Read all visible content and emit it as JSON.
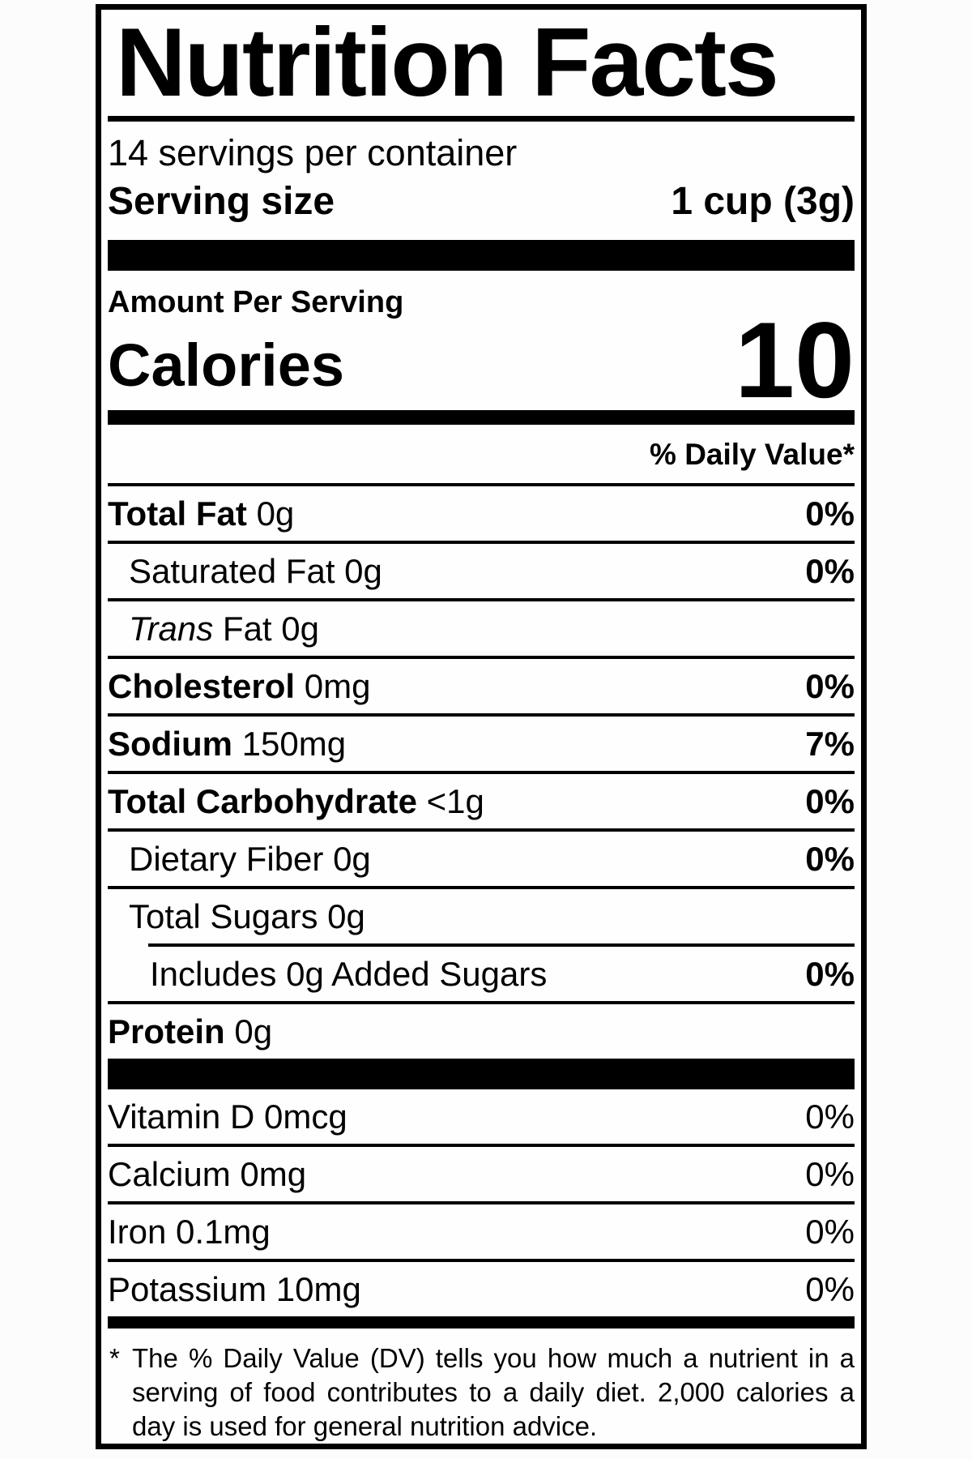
{
  "label": {
    "title": "Nutrition Facts",
    "servings_per_container": "14 servings per container",
    "serving_size": {
      "label": "Serving size",
      "value": "1 cup (3g)"
    },
    "amount_per_serving": "Amount Per Serving",
    "calories": {
      "label": "Calories",
      "value": "10"
    },
    "daily_value_header": "% Daily Value*",
    "rows": [
      {
        "name": "Total Fat",
        "amount": "0g",
        "pct": "0%"
      },
      {
        "name": "Saturated Fat",
        "amount": "0g",
        "pct": "0%"
      },
      {
        "name": "Trans",
        "amount": "Fat 0g",
        "pct": ""
      },
      {
        "name": "Cholesterol",
        "amount": "0mg",
        "pct": "0%"
      },
      {
        "name": "Sodium",
        "amount": "150mg",
        "pct": "7%"
      },
      {
        "name": "Total Carbohydrate",
        "amount": "<1g",
        "pct": "0%"
      },
      {
        "name": "Dietary Fiber",
        "amount": "0g",
        "pct": "0%"
      },
      {
        "name": "Total Sugars",
        "amount": "0g",
        "pct": ""
      },
      {
        "name": "Includes 0g Added Sugars",
        "amount": "",
        "pct": "0%"
      },
      {
        "name": "Protein",
        "amount": "0g",
        "pct": ""
      }
    ],
    "vitamins": [
      {
        "name": "Vitamin D",
        "amount": "0mcg",
        "pct": "0%"
      },
      {
        "name": "Calcium",
        "amount": "0mg",
        "pct": "0%"
      },
      {
        "name": "Iron",
        "amount": "0.1mg",
        "pct": "0%"
      },
      {
        "name": "Potassium",
        "amount": "10mg",
        "pct": "0%"
      }
    ],
    "footnote": {
      "asterisk": "*",
      "text": "The % Daily Value (DV) tells you how much a nutrient in a serving of food contributes to a daily diet. 2,000 calories a day is used for general nutrition advice."
    },
    "colors": {
      "ink": "#000000",
      "paper": "#fefefe"
    }
  }
}
